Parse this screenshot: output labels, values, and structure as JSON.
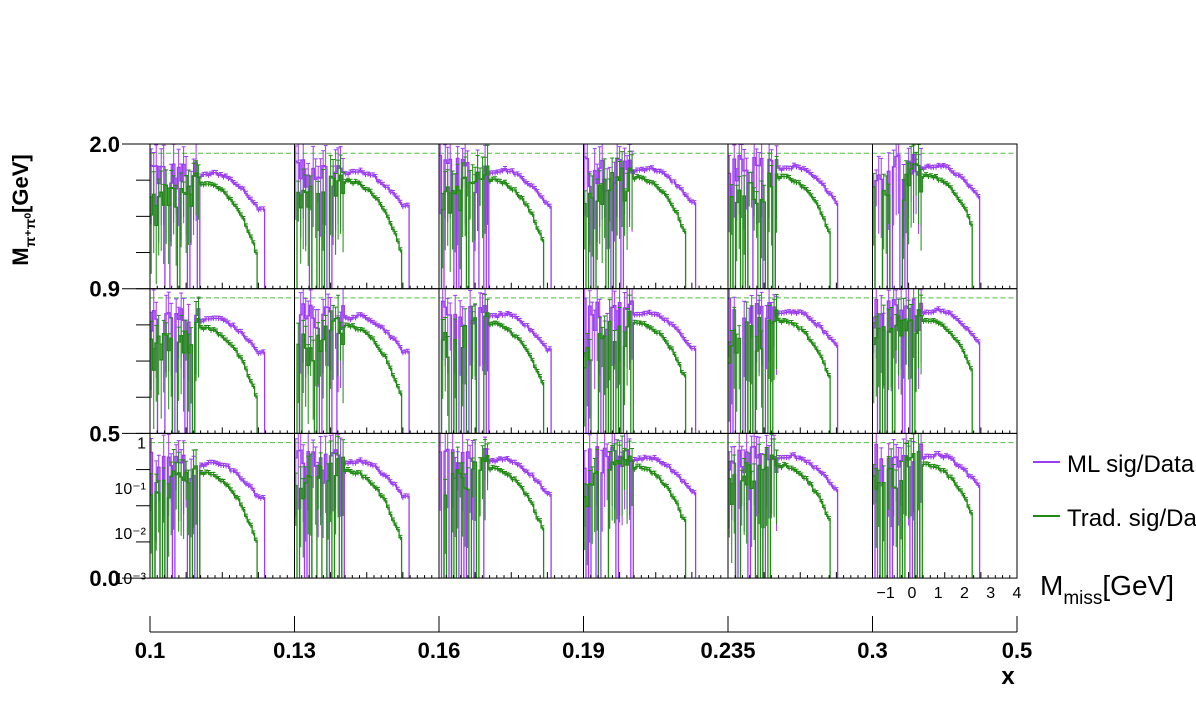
{
  "colors": {
    "ml": "#9b3cf0",
    "trad": "#1f8a12",
    "ref_line": "#4fbf3f",
    "frame": "#000000"
  },
  "labels": {
    "y_axis_main": "M",
    "y_axis_sub": "π⁺π⁰",
    "y_axis_unit": "[GeV]",
    "x_bottom": "x",
    "x_inner_main": "M",
    "x_inner_sub": "miss",
    "x_inner_unit": "[GeV]"
  },
  "legend": [
    {
      "name": "ML sig/Data",
      "color": "#9b3cf0"
    },
    {
      "name": "Trad. sig/Data",
      "color": "#1f8a12"
    }
  ],
  "chart_data": {
    "type": "line",
    "layout": "grid of 3 rows (M_pi+pi0 bins) x 6 columns (x bins), each pad a histogram vs M_miss",
    "x_bin_edges": [
      "0.1",
      "0.13",
      "0.16",
      "0.19",
      "0.235",
      "0.3",
      "0.5"
    ],
    "y_bin_edges": [
      "0.0",
      "0.5",
      "0.9",
      "2.0"
    ],
    "inner_x_ticks": [
      "−1",
      "0",
      "1",
      "2",
      "3",
      "4"
    ],
    "inner_x_range": [
      -1.5,
      4
    ],
    "inner_y_scale": "log",
    "inner_y_range": [
      0.001,
      1.6
    ],
    "inner_y_ticks": [
      "1",
      "10⁻¹",
      "10⁻²",
      "10⁻³"
    ],
    "reference_line_y": 1,
    "grid": false,
    "legend_position": "right",
    "series": [
      {
        "name": "ML sig/Data",
        "shape_x": [
          -1.4,
          -1.0,
          -0.6,
          -0.2,
          0.2,
          0.6,
          1.0,
          1.4,
          1.8,
          2.2,
          2.6
        ],
        "shape_y": [
          0.35,
          0.3,
          0.3,
          0.28,
          0.3,
          0.32,
          0.36,
          0.3,
          0.2,
          0.12,
          0.06
        ],
        "end_x": 2.9
      },
      {
        "name": "Trad. sig/Data",
        "shape_x": [
          -1.4,
          -1.0,
          -0.6,
          -0.2,
          0.2,
          0.6,
          1.0,
          1.4,
          1.8,
          2.2,
          2.6
        ],
        "shape_y": [
          0.06,
          0.08,
          0.12,
          0.15,
          0.2,
          0.22,
          0.18,
          0.12,
          0.06,
          0.02,
          0.004
        ],
        "end_x": 2.6
      }
    ]
  }
}
